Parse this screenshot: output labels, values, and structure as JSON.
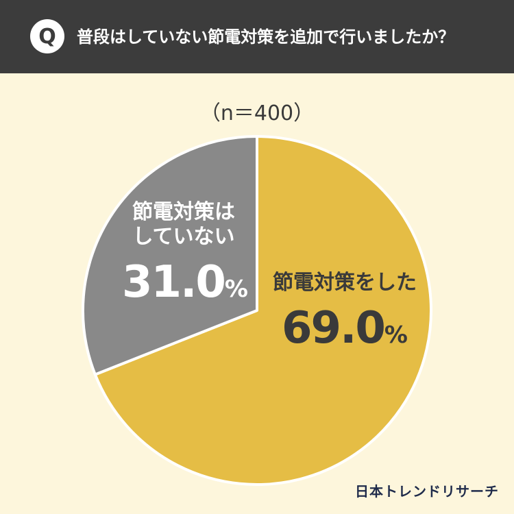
{
  "header": {
    "badge": "Q",
    "question": "普段はしていない節電対策を追加で行いましたか？"
  },
  "sample_size": "（n＝400）",
  "chart_data": {
    "type": "pie",
    "slices": [
      {
        "label_lines": [
          "節電対策をした"
        ],
        "value": 69.0,
        "display": "69.0",
        "color": "#e5bd45"
      },
      {
        "label_lines": [
          "節電対策は",
          "していない"
        ],
        "value": 31.0,
        "display": "31.0",
        "color": "#898989"
      }
    ],
    "unit": "%"
  },
  "brand": "日本トレンドリサーチ"
}
